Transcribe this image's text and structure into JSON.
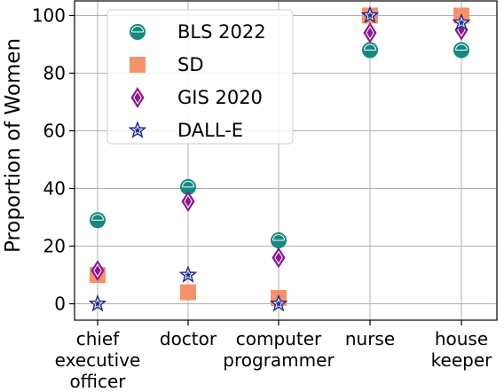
{
  "chart_data": {
    "type": "scatter",
    "title": "",
    "xlabel": "",
    "ylabel": "Proportion of Women",
    "ylim": [
      0,
      100
    ],
    "yticks": [
      0,
      20,
      40,
      60,
      80,
      100
    ],
    "grid": true,
    "legend_position": "top-left",
    "categories": [
      [
        "chief",
        "executive",
        "officer"
      ],
      [
        "doctor"
      ],
      [
        "computer",
        "programmer"
      ],
      [
        "nurse"
      ],
      [
        "house",
        "keeper"
      ]
    ],
    "series": [
      {
        "name": "BLS 2022",
        "marker": "circle-half",
        "color": "#138a80",
        "values": [
          29,
          40.5,
          22,
          88,
          88
        ]
      },
      {
        "name": "SD",
        "marker": "square",
        "color": "#f5926b",
        "values": [
          10,
          4,
          2,
          100,
          100
        ]
      },
      {
        "name": "GIS 2020",
        "marker": "diamond-half",
        "color": "#8b1a90",
        "values": [
          11.5,
          35.5,
          16,
          94,
          95
        ]
      },
      {
        "name": "DALL-E",
        "marker": "star",
        "color": "#1f2a8c",
        "values": [
          0,
          10,
          0,
          100,
          97.5
        ]
      }
    ]
  }
}
